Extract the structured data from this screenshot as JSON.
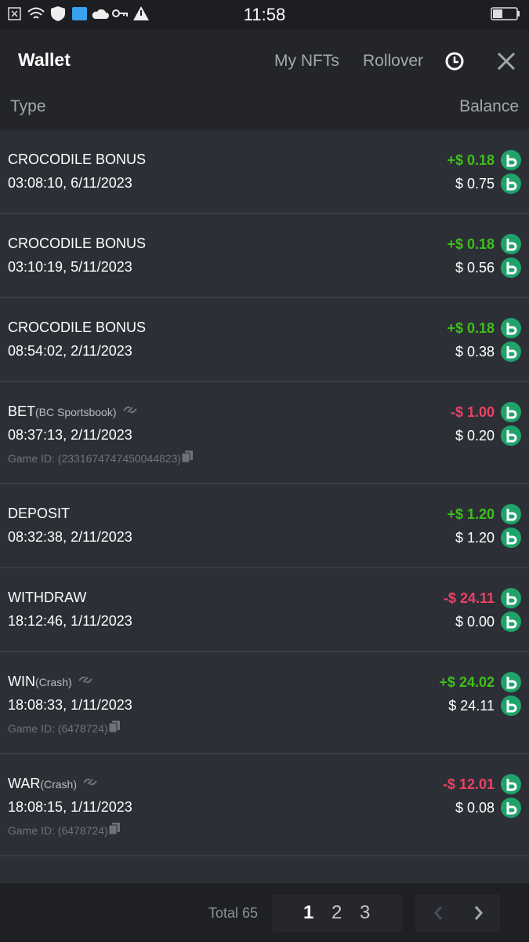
{
  "status_bar": {
    "time": "11:58"
  },
  "header": {
    "title": "Wallet",
    "tabs": [
      "My NFTs",
      "Rollover"
    ],
    "columns": [
      "Type",
      "Balance"
    ]
  },
  "rows": [
    {
      "type": "CROCODILE BONUS",
      "time": "03:08:10, 6/11/2023",
      "change": "+$ 0.18",
      "balance": "$ 0.75"
    },
    {
      "type": "CROCODILE BONUS",
      "time": "03:10:19, 5/11/2023",
      "change": "+$ 0.18",
      "balance": "$ 0.56"
    },
    {
      "type": "CROCODILE BONUS",
      "time": "08:54:02, 2/11/2023",
      "change": "+$ 0.18",
      "balance": "$ 0.38"
    },
    {
      "type": "BET",
      "source": "(BC Sportsbook)",
      "time": "08:37:13, 2/11/2023",
      "game_id": "Game ID: (2331674747450044823)",
      "change": "-$ 1.00",
      "balance": "$ 0.20"
    },
    {
      "type": "DEPOSIT",
      "time": "08:32:38, 2/11/2023",
      "change": "+$ 1.20",
      "balance": "$ 1.20"
    },
    {
      "type": "WITHDRAW",
      "time": "18:12:46, 1/11/2023",
      "change": "-$ 24.11",
      "balance": "$ 0.00"
    },
    {
      "type": "WIN",
      "source": "(Crash)",
      "time": "18:08:33, 1/11/2023",
      "game_id": "Game ID: (6478724)",
      "change": "+$ 24.02",
      "balance": "$ 24.11"
    },
    {
      "type": "WAR",
      "source": "(Crash)",
      "time": "18:08:15, 1/11/2023",
      "game_id": "Game ID: (6478724)",
      "change": "-$ 12.01",
      "balance": "$ 0.08"
    }
  ],
  "footer": {
    "total": "Total 65",
    "pages": [
      "1",
      "2",
      "3"
    ]
  }
}
